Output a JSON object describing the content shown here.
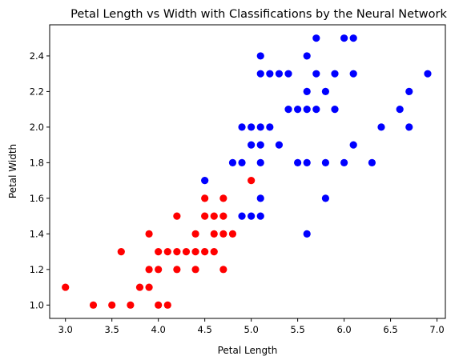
{
  "chart_data": {
    "type": "scatter",
    "title": "Petal Length vs Width with Classifications by the Neural Network",
    "xlabel": "Petal Length",
    "ylabel": "Petal Width",
    "xlim": [
      2.83,
      7.09
    ],
    "ylim": [
      0.925,
      2.575
    ],
    "xticks": [
      "3.0",
      "3.5",
      "4.0",
      "4.5",
      "5.0",
      "5.5",
      "6.0",
      "6.5",
      "7.0"
    ],
    "yticks": [
      "1.0",
      "1.2",
      "1.4",
      "1.6",
      "1.8",
      "2.0",
      "2.2",
      "2.4"
    ],
    "grid": false,
    "series": [
      {
        "color": "#ff0000",
        "points": [
          [
            3.0,
            1.1
          ],
          [
            3.3,
            1.0
          ],
          [
            3.5,
            1.0
          ],
          [
            3.6,
            1.3
          ],
          [
            3.7,
            1.0
          ],
          [
            3.8,
            1.1
          ],
          [
            3.9,
            1.1
          ],
          [
            3.9,
            1.2
          ],
          [
            3.9,
            1.4
          ],
          [
            4.0,
            1.0
          ],
          [
            4.0,
            1.2
          ],
          [
            4.0,
            1.3
          ],
          [
            4.1,
            1.0
          ],
          [
            4.1,
            1.3
          ],
          [
            4.2,
            1.2
          ],
          [
            4.2,
            1.3
          ],
          [
            4.2,
            1.5
          ],
          [
            4.3,
            1.3
          ],
          [
            4.4,
            1.2
          ],
          [
            4.4,
            1.3
          ],
          [
            4.4,
            1.4
          ],
          [
            4.5,
            1.3
          ],
          [
            4.5,
            1.5
          ],
          [
            4.5,
            1.6
          ],
          [
            4.6,
            1.3
          ],
          [
            4.6,
            1.4
          ],
          [
            4.6,
            1.5
          ],
          [
            4.7,
            1.2
          ],
          [
            4.7,
            1.4
          ],
          [
            4.7,
            1.5
          ],
          [
            4.7,
            1.6
          ],
          [
            4.8,
            1.4
          ],
          [
            5.0,
            1.7
          ]
        ]
      },
      {
        "color": "#0000ff",
        "points": [
          [
            4.5,
            1.7
          ],
          [
            4.8,
            1.8
          ],
          [
            4.9,
            1.5
          ],
          [
            4.9,
            1.8
          ],
          [
            4.9,
            2.0
          ],
          [
            5.0,
            1.5
          ],
          [
            5.0,
            1.9
          ],
          [
            5.0,
            2.0
          ],
          [
            5.1,
            1.5
          ],
          [
            5.1,
            1.6
          ],
          [
            5.1,
            1.8
          ],
          [
            5.1,
            1.9
          ],
          [
            5.1,
            2.0
          ],
          [
            5.1,
            2.3
          ],
          [
            5.1,
            2.4
          ],
          [
            5.2,
            2.0
          ],
          [
            5.2,
            2.3
          ],
          [
            5.3,
            1.9
          ],
          [
            5.3,
            2.3
          ],
          [
            5.4,
            2.1
          ],
          [
            5.4,
            2.3
          ],
          [
            5.5,
            1.8
          ],
          [
            5.5,
            2.1
          ],
          [
            5.6,
            1.4
          ],
          [
            5.6,
            1.8
          ],
          [
            5.6,
            2.1
          ],
          [
            5.6,
            2.2
          ],
          [
            5.6,
            2.4
          ],
          [
            5.7,
            2.1
          ],
          [
            5.7,
            2.3
          ],
          [
            5.7,
            2.5
          ],
          [
            5.8,
            1.6
          ],
          [
            5.8,
            1.8
          ],
          [
            5.8,
            2.2
          ],
          [
            5.9,
            2.1
          ],
          [
            5.9,
            2.3
          ],
          [
            6.0,
            1.8
          ],
          [
            6.0,
            2.5
          ],
          [
            6.1,
            1.9
          ],
          [
            6.1,
            2.3
          ],
          [
            6.1,
            2.5
          ],
          [
            6.3,
            1.8
          ],
          [
            6.4,
            2.0
          ],
          [
            6.6,
            2.1
          ],
          [
            6.7,
            2.0
          ],
          [
            6.7,
            2.2
          ],
          [
            6.9,
            2.3
          ]
        ]
      }
    ]
  }
}
